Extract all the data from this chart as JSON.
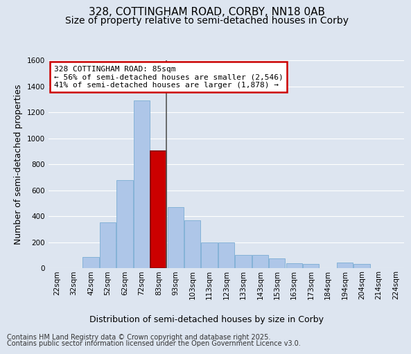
{
  "title_line1": "328, COTTINGHAM ROAD, CORBY, NN18 0AB",
  "title_line2": "Size of property relative to semi-detached houses in Corby",
  "xlabel": "Distribution of semi-detached houses by size in Corby",
  "ylabel": "Number of semi-detached properties",
  "footnote1": "Contains HM Land Registry data © Crown copyright and database right 2025.",
  "footnote2": "Contains public sector information licensed under the Open Government Licence v3.0.",
  "annotation_title": "328 COTTINGHAM ROAD: 85sqm",
  "annotation_line2": "← 56% of semi-detached houses are smaller (2,546)",
  "annotation_line3": "41% of semi-detached houses are larger (1,878) →",
  "bar_labels": [
    "22sqm",
    "32sqm",
    "42sqm",
    "52sqm",
    "62sqm",
    "72sqm",
    "83sqm",
    "93sqm",
    "103sqm",
    "113sqm",
    "123sqm",
    "133sqm",
    "143sqm",
    "153sqm",
    "163sqm",
    "173sqm",
    "184sqm",
    "194sqm",
    "204sqm",
    "214sqm",
    "224sqm"
  ],
  "bar_heights": [
    0,
    0,
    85,
    350,
    680,
    1290,
    900,
    470,
    370,
    200,
    195,
    100,
    100,
    75,
    35,
    30,
    0,
    45,
    30,
    0,
    0
  ],
  "highlight_index": 6,
  "bar_color_normal": "#aec6e8",
  "bar_color_highlight": "#cc0000",
  "bar_edgecolor_normal": "#7aadd4",
  "bar_edgecolor_highlight": "#880000",
  "background_color": "#dde5f0",
  "plot_bg_color": "#dde5f0",
  "vline_color": "#555555",
  "vline_index": 6,
  "ylim": [
    0,
    1600
  ],
  "yticks": [
    0,
    200,
    400,
    600,
    800,
    1000,
    1200,
    1400,
    1600
  ],
  "grid_color": "#ffffff",
  "annotation_box_facecolor": "#ffffff",
  "annotation_box_edgecolor": "#cc0000",
  "tick_label_fontsize": 7.5,
  "axis_label_fontsize": 9,
  "title_fontsize1": 11,
  "title_fontsize2": 10,
  "footnote_fontsize": 7,
  "annotation_fontsize": 8
}
